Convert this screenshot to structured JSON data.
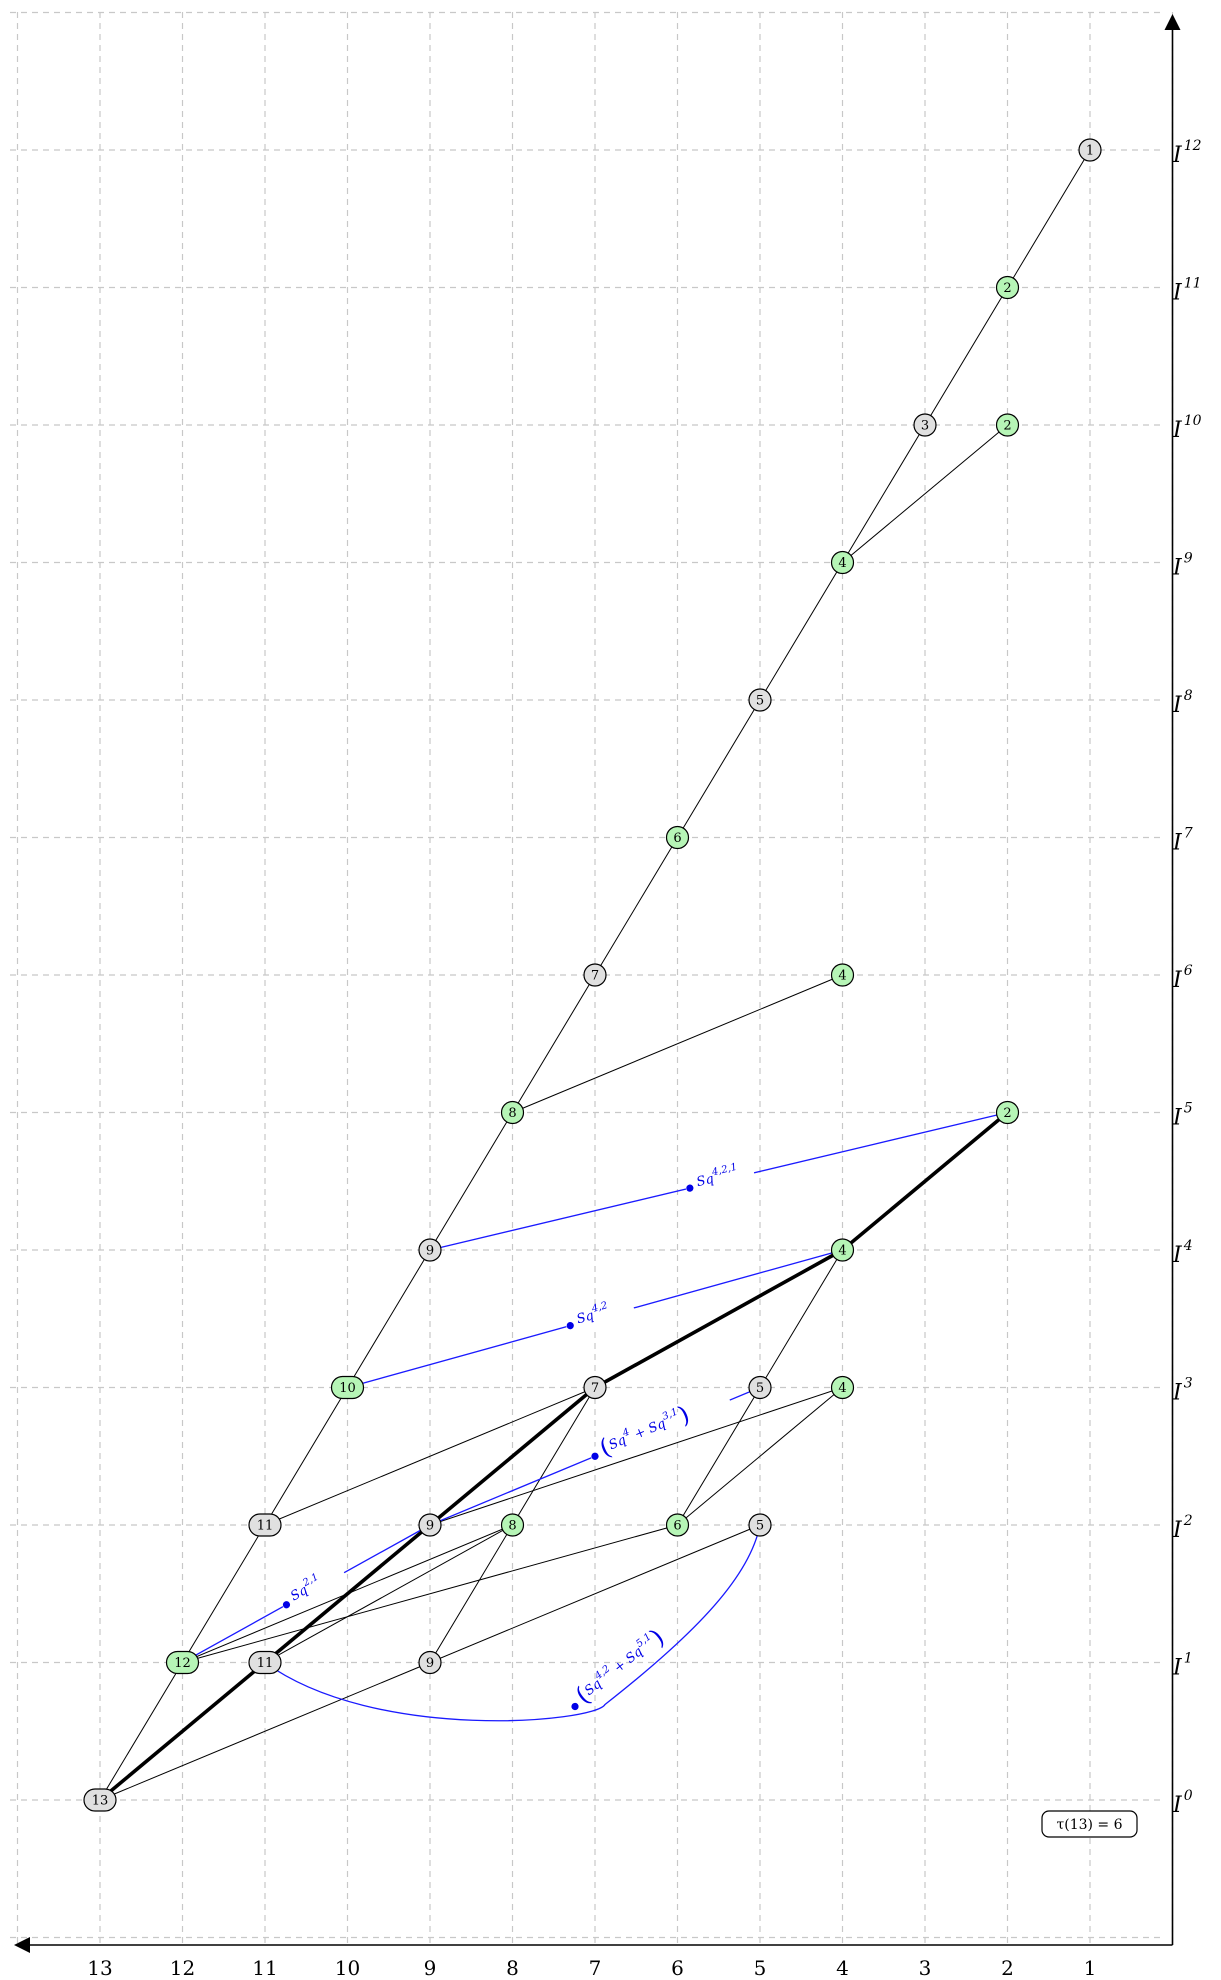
{
  "chart_data": {
    "type": "diagram",
    "x_axis": {
      "ticks": [
        13,
        12,
        11,
        10,
        9,
        8,
        7,
        6,
        5,
        4,
        3,
        2,
        1
      ],
      "direction": "right-to-left"
    },
    "y_axis": {
      "ticks": [
        0,
        1,
        2,
        3,
        4,
        5,
        6,
        7,
        8,
        9,
        10,
        11,
        12
      ],
      "label_base": "I"
    },
    "colors": {
      "gray_node": "#e0e0e0",
      "green_node": "#b6f5b6",
      "operation": "#0000e6",
      "grid": "#c8c8c8"
    },
    "nodes": [
      {
        "id": "a",
        "x": 13,
        "y": 0,
        "label": "13",
        "color": "gray"
      },
      {
        "id": "b",
        "x": 12,
        "y": 1,
        "label": "12",
        "color": "green"
      },
      {
        "id": "c",
        "x": 11,
        "y": 1,
        "label": "11",
        "color": "gray"
      },
      {
        "id": "d",
        "x": 9,
        "y": 1,
        "label": "9",
        "color": "gray"
      },
      {
        "id": "e",
        "x": 11,
        "y": 2,
        "label": "11",
        "color": "gray"
      },
      {
        "id": "f",
        "x": 9,
        "y": 2,
        "label": "9",
        "color": "gray"
      },
      {
        "id": "g",
        "x": 8,
        "y": 2,
        "label": "8",
        "color": "green"
      },
      {
        "id": "h",
        "x": 6,
        "y": 2,
        "label": "6",
        "color": "green"
      },
      {
        "id": "i",
        "x": 5,
        "y": 2,
        "label": "5",
        "color": "gray"
      },
      {
        "id": "j",
        "x": 10,
        "y": 3,
        "label": "10",
        "color": "green"
      },
      {
        "id": "k",
        "x": 7,
        "y": 3,
        "label": "7",
        "color": "gray"
      },
      {
        "id": "l",
        "x": 5,
        "y": 3,
        "label": "5",
        "color": "gray"
      },
      {
        "id": "m",
        "x": 4,
        "y": 3,
        "label": "4",
        "color": "green"
      },
      {
        "id": "n",
        "x": 9,
        "y": 4,
        "label": "9",
        "color": "gray"
      },
      {
        "id": "o",
        "x": 4,
        "y": 4,
        "label": "4",
        "color": "green"
      },
      {
        "id": "p",
        "x": 8,
        "y": 5,
        "label": "8",
        "color": "green"
      },
      {
        "id": "q",
        "x": 2,
        "y": 5,
        "label": "2",
        "color": "green"
      },
      {
        "id": "r",
        "x": 7,
        "y": 6,
        "label": "7",
        "color": "gray"
      },
      {
        "id": "s",
        "x": 4,
        "y": 6,
        "label": "4",
        "color": "green"
      },
      {
        "id": "t",
        "x": 6,
        "y": 7,
        "label": "6",
        "color": "green"
      },
      {
        "id": "u",
        "x": 5,
        "y": 8,
        "label": "5",
        "color": "gray"
      },
      {
        "id": "v",
        "x": 4,
        "y": 9,
        "label": "4",
        "color": "green"
      },
      {
        "id": "w",
        "x": 3,
        "y": 10,
        "label": "3",
        "color": "gray"
      },
      {
        "id": "x",
        "x": 2,
        "y": 10,
        "label": "2",
        "color": "green"
      },
      {
        "id": "y",
        "x": 2,
        "y": 11,
        "label": "2",
        "color": "green"
      },
      {
        "id": "z",
        "x": 1,
        "y": 12,
        "label": "1",
        "color": "gray"
      }
    ],
    "edges": [
      {
        "from": "a",
        "to": "b"
      },
      {
        "from": "a",
        "to": "d"
      },
      {
        "from": "b",
        "to": "e"
      },
      {
        "from": "b",
        "to": "g"
      },
      {
        "from": "b",
        "to": "h"
      },
      {
        "from": "c",
        "to": "g"
      },
      {
        "from": "d",
        "to": "g"
      },
      {
        "from": "d",
        "to": "i"
      },
      {
        "from": "e",
        "to": "j"
      },
      {
        "from": "e",
        "to": "k"
      },
      {
        "from": "f",
        "to": "m"
      },
      {
        "from": "g",
        "to": "k"
      },
      {
        "from": "h",
        "to": "l"
      },
      {
        "from": "h",
        "to": "m"
      },
      {
        "from": "j",
        "to": "n"
      },
      {
        "from": "l",
        "to": "o"
      },
      {
        "from": "n",
        "to": "p"
      },
      {
        "from": "p",
        "to": "r"
      },
      {
        "from": "p",
        "to": "s"
      },
      {
        "from": "r",
        "to": "t"
      },
      {
        "from": "t",
        "to": "u"
      },
      {
        "from": "u",
        "to": "v"
      },
      {
        "from": "v",
        "to": "w"
      },
      {
        "from": "v",
        "to": "x"
      },
      {
        "from": "w",
        "to": "y"
      },
      {
        "from": "y",
        "to": "z"
      }
    ],
    "bold_path": [
      "a",
      "c",
      "f",
      "k",
      "o",
      "q"
    ],
    "operations": [
      {
        "from": "b",
        "to": "f",
        "label": "Sq^{2,1}",
        "label_base": "Sq",
        "label_sup": "2,1",
        "t": 0.42
      },
      {
        "from": "f",
        "to": "l",
        "label": "(Sq^4 + Sq^{3,1})",
        "label_base": "Sq",
        "t": 0.5
      },
      {
        "from": "j",
        "to": "o",
        "label": "Sq^{4,2}",
        "label_base": "Sq",
        "label_sup": "4,2",
        "t": 0.45
      },
      {
        "from": "n",
        "to": "q",
        "label": "Sq^{4,2,1}",
        "label_base": "Sq",
        "label_sup": "4,2,1",
        "t": 0.45
      },
      {
        "from": "c",
        "to": "i",
        "label": "(Sq^{4,2} + Sq^{5,1})",
        "label_base": "Sq",
        "curved": true
      }
    ],
    "tau_label": "τ(13) = 6"
  }
}
